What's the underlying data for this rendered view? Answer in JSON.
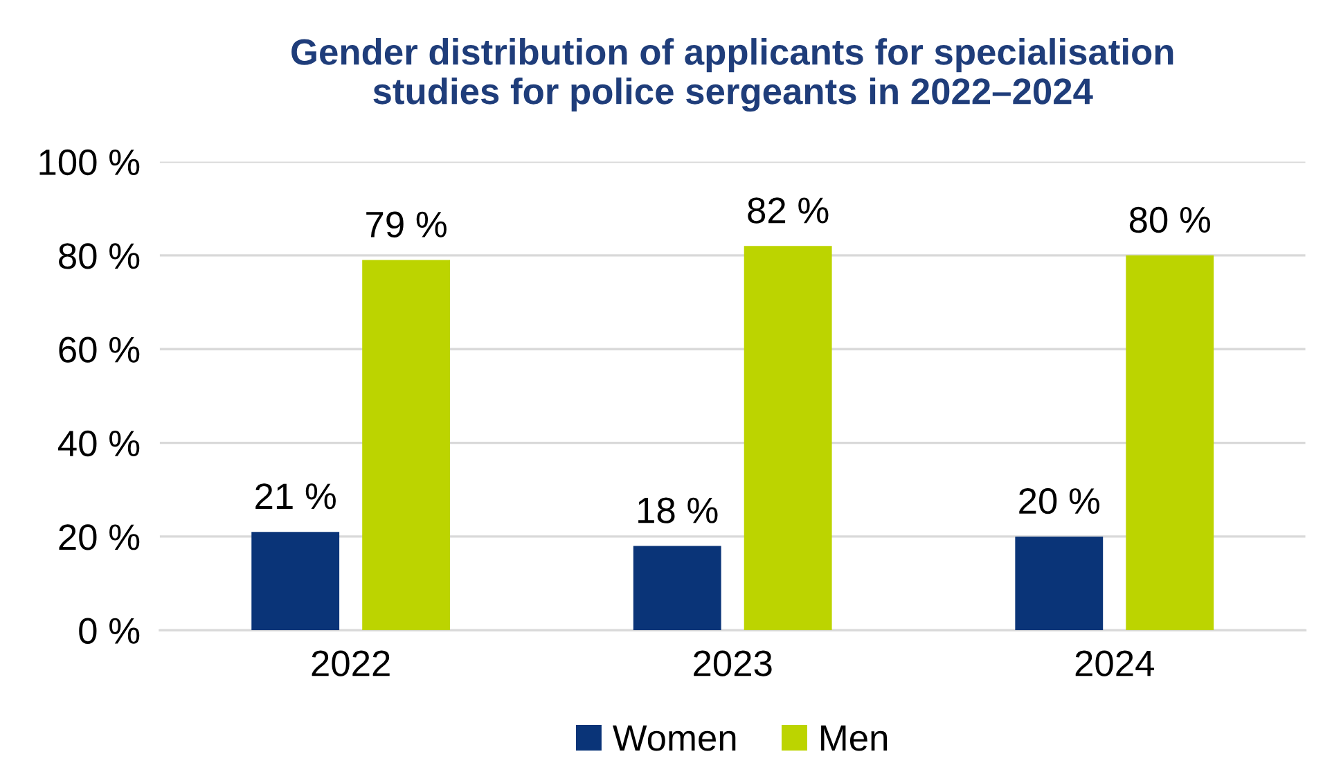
{
  "chart_data": {
    "type": "bar",
    "title": "Gender distribution of applicants for specialisation\nstudies for police sergeants in 2022–2024",
    "categories": [
      "2022",
      "2023",
      "2024"
    ],
    "series": [
      {
        "name": "Women",
        "color": "#0a3478",
        "values": [
          21,
          18,
          20
        ],
        "value_labels": [
          "21 %",
          "18 %",
          "20 %"
        ]
      },
      {
        "name": "Men",
        "color": "#bcd400",
        "values": [
          79,
          82,
          80
        ],
        "value_labels": [
          "79 %",
          "82 %",
          "80 %"
        ]
      }
    ],
    "ylim": [
      0,
      100
    ],
    "yticks": [
      {
        "value": 0,
        "label": "0 %"
      },
      {
        "value": 20,
        "label": "20 %"
      },
      {
        "value": 40,
        "label": "40 %"
      },
      {
        "value": 60,
        "label": "60 %"
      },
      {
        "value": 80,
        "label": "80 %"
      },
      {
        "value": 100,
        "label": "100 %"
      }
    ],
    "grid": "y",
    "legend": "bottom"
  }
}
